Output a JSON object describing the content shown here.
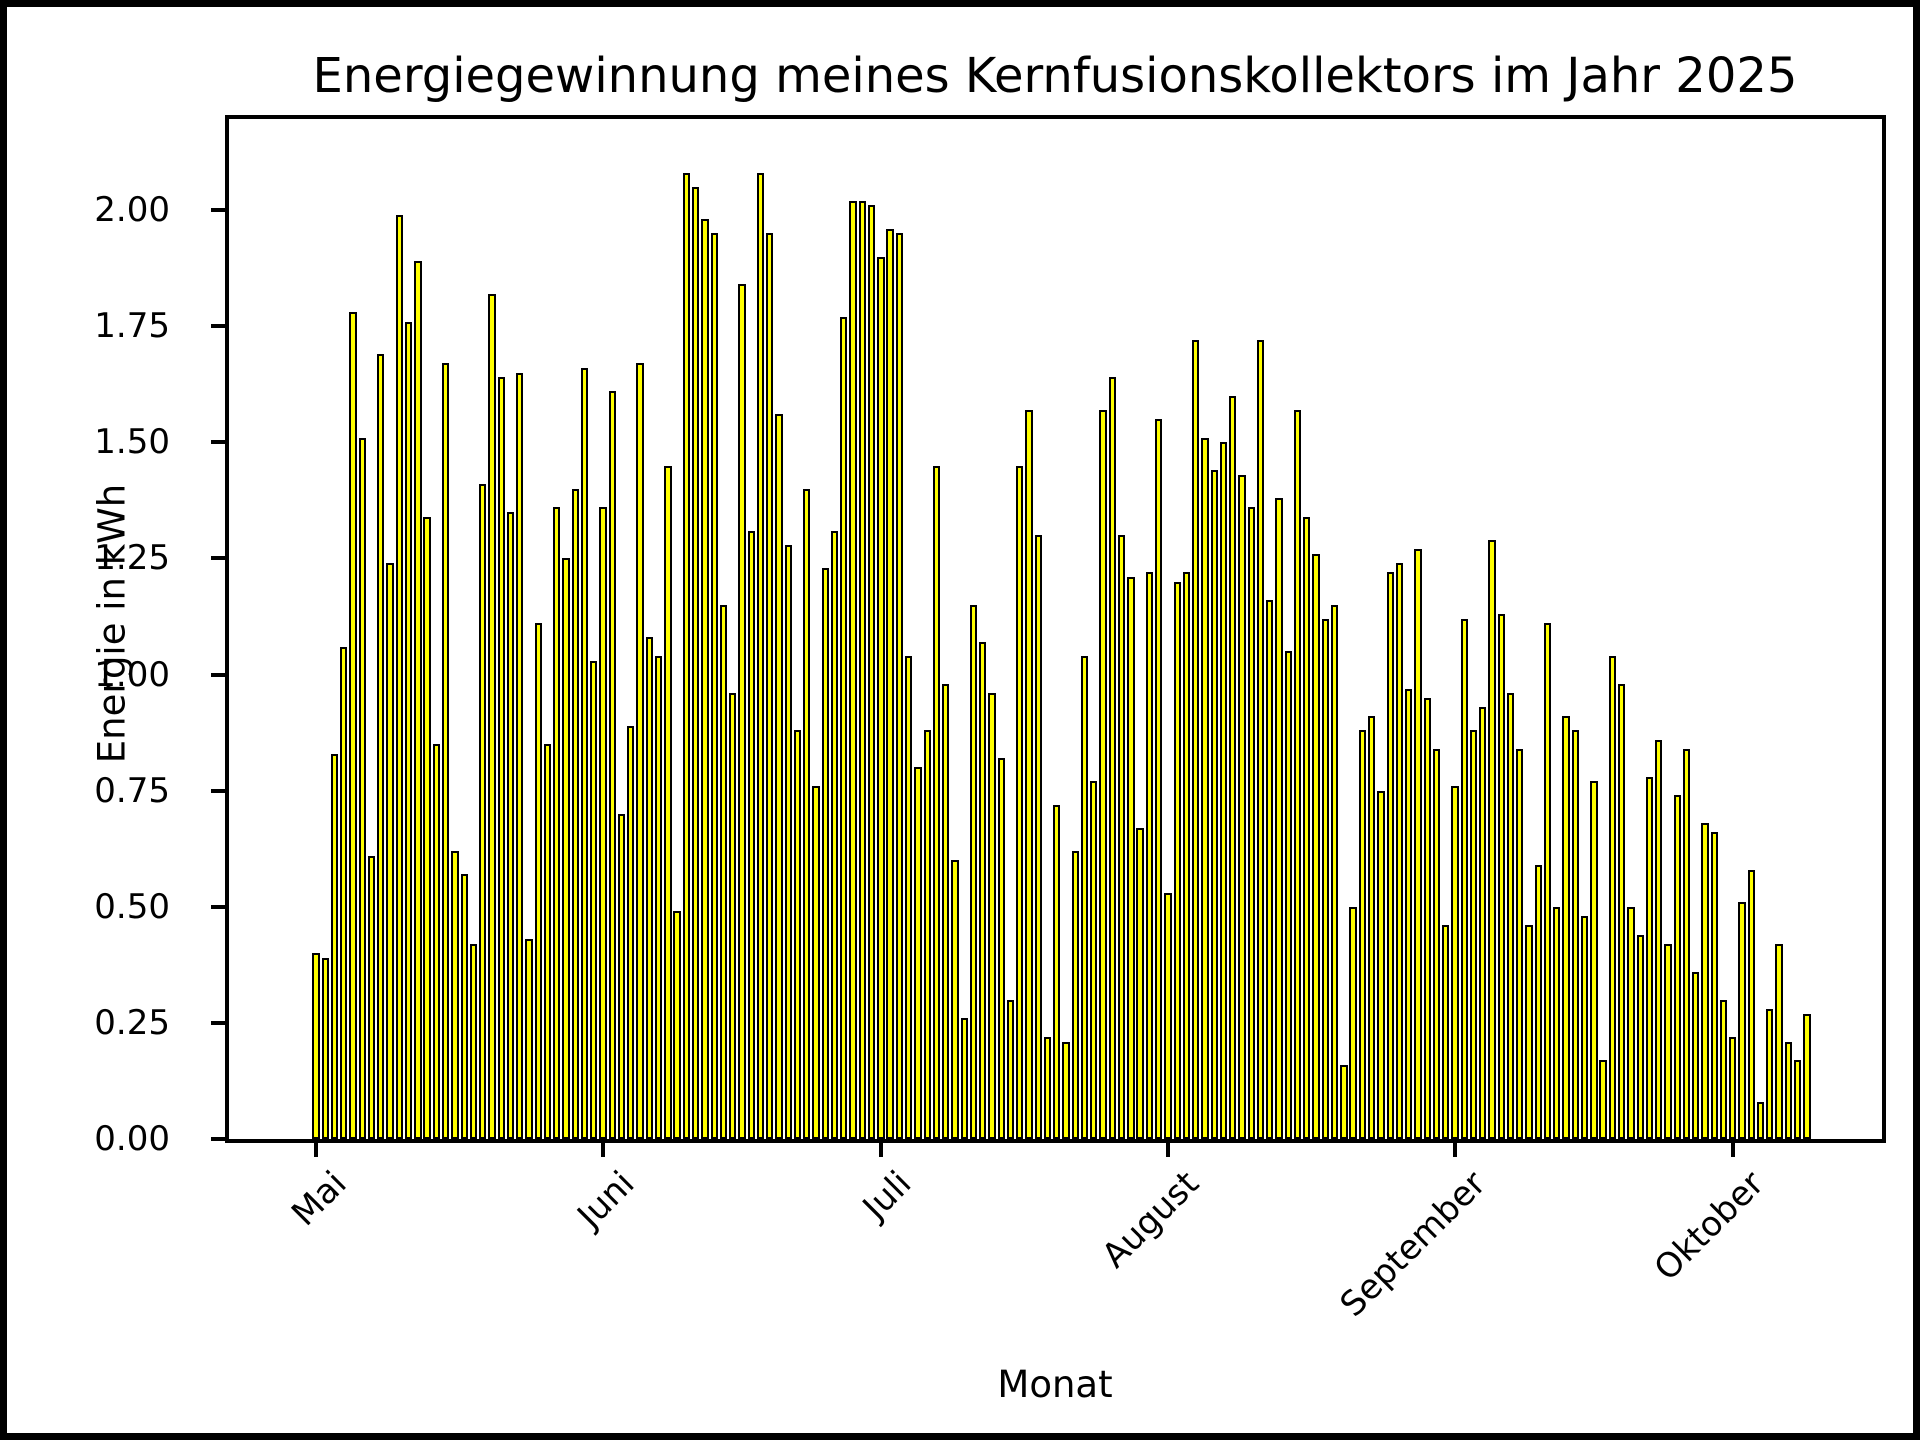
{
  "chart_data": {
    "type": "bar",
    "title": "Energiegewinnung meines Kernfusionskollektors im Jahr 2025",
    "xlabel": "Monat",
    "ylabel": "Energie in kWh",
    "bar_color": "#ffff00",
    "bar_edge_color": "#000000",
    "background_color": "#ffffff",
    "grid": "off",
    "legend": "none",
    "ylim": [
      0,
      2.196
    ],
    "yticks": [
      0.0,
      0.25,
      0.5,
      0.75,
      1.0,
      1.25,
      1.5,
      1.75,
      2.0
    ],
    "ytick_labels": [
      "0.00",
      "0.25",
      "0.50",
      "0.75",
      "1.00",
      "1.25",
      "1.50",
      "1.75",
      "2.00"
    ],
    "x_tick_labels": [
      "Mai",
      "Juni",
      "Juli",
      "August",
      "September",
      "Oktober"
    ],
    "months": [
      {
        "label": "Mai",
        "days": 31
      },
      {
        "label": "Juni",
        "days": 30
      },
      {
        "label": "Juli",
        "days": 31
      },
      {
        "label": "August",
        "days": 31
      },
      {
        "label": "September",
        "days": 30
      },
      {
        "label": "Oktober",
        "days": 9
      }
    ],
    "values": [
      0.4,
      0.39,
      0.83,
      1.06,
      1.78,
      1.51,
      0.61,
      1.69,
      1.24,
      1.99,
      1.76,
      1.89,
      1.34,
      0.85,
      1.67,
      0.62,
      0.57,
      0.42,
      1.41,
      1.82,
      1.64,
      1.35,
      1.65,
      0.43,
      1.11,
      0.85,
      1.36,
      1.25,
      1.4,
      1.66,
      1.03,
      1.36,
      1.61,
      0.7,
      0.89,
      1.67,
      1.08,
      1.04,
      1.45,
      0.49,
      2.08,
      2.05,
      1.98,
      1.95,
      1.15,
      0.96,
      1.84,
      1.31,
      2.08,
      1.95,
      1.56,
      1.28,
      0.88,
      1.4,
      0.76,
      1.23,
      1.31,
      1.77,
      2.02,
      2.02,
      2.01,
      1.9,
      1.96,
      1.95,
      1.04,
      0.8,
      0.88,
      1.45,
      0.98,
      0.6,
      0.26,
      1.15,
      1.07,
      0.96,
      0.82,
      0.3,
      1.45,
      1.57,
      1.3,
      0.22,
      0.72,
      0.21,
      0.62,
      1.04,
      0.77,
      1.57,
      1.64,
      1.3,
      1.21,
      0.67,
      1.22,
      1.55,
      0.53,
      1.2,
      1.22,
      1.72,
      1.51,
      1.44,
      1.5,
      1.6,
      1.43,
      1.36,
      1.72,
      1.16,
      1.38,
      1.05,
      1.57,
      1.34,
      1.26,
      1.12,
      1.15,
      0.16,
      0.5,
      0.88,
      0.91,
      0.75,
      1.22,
      1.24,
      0.97,
      1.27,
      0.95,
      0.84,
      0.46,
      0.76,
      1.12,
      0.88,
      0.93,
      1.29,
      1.13,
      0.96,
      0.84,
      0.46,
      0.59,
      1.11,
      0.5,
      0.91,
      0.88,
      0.48,
      0.77,
      0.17,
      1.04,
      0.98,
      0.5,
      0.44,
      0.78,
      0.86,
      0.42,
      0.74,
      0.84,
      0.36,
      0.68,
      0.66,
      0.3,
      0.22,
      0.51,
      0.58,
      0.08,
      0.28,
      0.42,
      0.21,
      0.17,
      0.27
    ]
  }
}
